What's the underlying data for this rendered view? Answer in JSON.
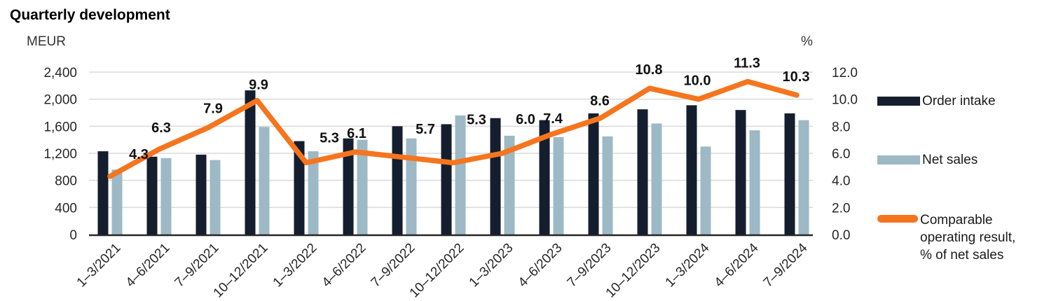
{
  "title": "Quarterly development",
  "colors": {
    "order_intake": "#141E2E",
    "net_sales": "#9DB9C5",
    "result_line": "#F5751E",
    "gridline": "#DADADA",
    "axis_line": "#262626"
  },
  "chart_data": {
    "type": "combo_bar_line",
    "title": "Quarterly development",
    "grid": true,
    "legend_position": "right",
    "categories": [
      "1–3/2021",
      "4–6/2021",
      "7–9/2021",
      "10–12/2021",
      "1–3/2022",
      "4–6/2022",
      "7–9/2022",
      "10–12/2022",
      "1–3/2023",
      "4–6/2023",
      "7–9/2023",
      "10–12/2023",
      "1–3/2024",
      "4–6/2024",
      "7–9/2024"
    ],
    "left_axis": {
      "title": "MEUR",
      "min": 0,
      "max": 2400,
      "step": 400,
      "tick_labels": [
        "0",
        "400",
        "800",
        "1,200",
        "1,600",
        "2,000",
        "2,400"
      ]
    },
    "right_axis": {
      "title": "%",
      "min": 0,
      "max": 12,
      "step": 2,
      "tick_labels": [
        "0.0",
        "2.0",
        "4.0",
        "6.0",
        "8.0",
        "10.0",
        "12.0"
      ]
    },
    "series": [
      {
        "name": "Order intake",
        "chart_type": "bar",
        "axis": "left",
        "color": "#141E2E",
        "values": [
          1230,
          1150,
          1180,
          2130,
          1380,
          1420,
          1600,
          1630,
          1720,
          1690,
          1790,
          1850,
          1910,
          1840,
          1790
        ]
      },
      {
        "name": "Net sales",
        "chart_type": "bar",
        "axis": "left",
        "color": "#9DB9C5",
        "values": [
          960,
          1130,
          1100,
          1590,
          1230,
          1400,
          1420,
          1760,
          1460,
          1440,
          1450,
          1640,
          1300,
          1540,
          1690
        ]
      },
      {
        "name": "Comparable operating result, % of net sales",
        "chart_type": "line",
        "axis": "right",
        "color": "#F5751E",
        "values": [
          4.3,
          6.3,
          7.9,
          9.9,
          5.3,
          6.1,
          5.7,
          5.3,
          6.0,
          7.4,
          8.6,
          10.8,
          10.0,
          11.3,
          10.3
        ],
        "point_labels": [
          "4.3",
          "6.3",
          "7.9",
          "9.9",
          "5.3",
          "6.1",
          "5.7",
          "5.3",
          "6.0",
          "7.4",
          "8.6",
          "10.8",
          "10.0",
          "11.3",
          "10.3"
        ]
      }
    ]
  }
}
